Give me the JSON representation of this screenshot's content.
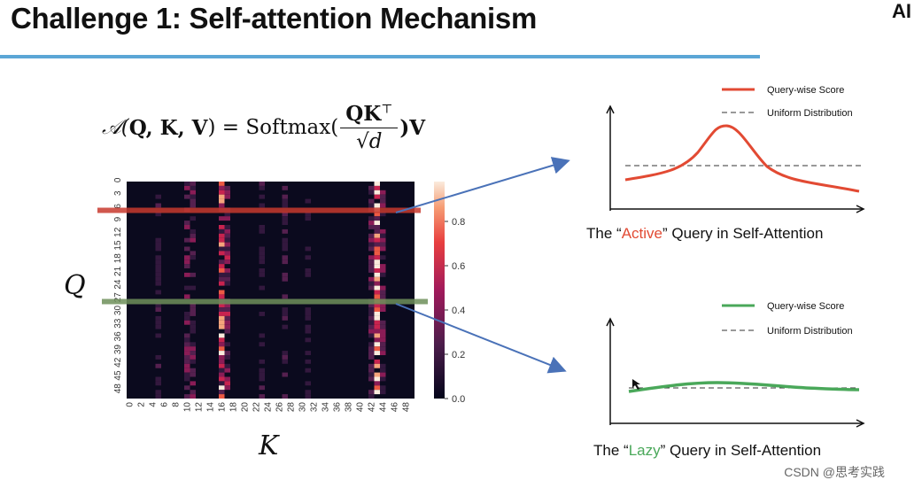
{
  "header": {
    "title": "Challenge 1: Self-attention Mechanism",
    "logo": "AI"
  },
  "formula": {
    "lhs": "𝒜(",
    "args": "Q, K, V",
    "eq": ") = Softmax(",
    "numerator": "QK",
    "numerator_sup": "⊤",
    "denominator": "√d",
    "tail": ")V"
  },
  "heatmap": {
    "q_label": "Q",
    "k_label": "K",
    "y_ticks": [
      "0",
      "3",
      "6",
      "9",
      "12",
      "15",
      "18",
      "21",
      "24",
      "27",
      "30",
      "33",
      "36",
      "39",
      "42",
      "45",
      "48"
    ],
    "x_ticks": [
      "0",
      "2",
      "4",
      "6",
      "8",
      "10",
      "12",
      "14",
      "16",
      "18",
      "20",
      "22",
      "24",
      "26",
      "28",
      "30",
      "32",
      "34",
      "36",
      "38",
      "40",
      "42",
      "44",
      "46",
      "48"
    ],
    "colorbar_ticks": [
      "0.8",
      "0.6",
      "0.4",
      "0.2",
      "0.0"
    ],
    "highlight_rows": [
      {
        "name": "active-query-row",
        "row": 7,
        "color": "#c83a2e"
      },
      {
        "name": "lazy-query-row",
        "row": 28,
        "color": "#6f8f5a"
      }
    ]
  },
  "active_panel": {
    "legend_series": "Query-wise Score",
    "legend_uniform": "Uniform Distribution",
    "caption_prefix": "The “",
    "caption_highlight": "Active",
    "caption_suffix": "” Query in Self-Attention",
    "color": "#e24a33"
  },
  "lazy_panel": {
    "legend_series": "Query-wise Score",
    "legend_uniform": "Uniform Distribution",
    "caption_prefix": "The “",
    "caption_highlight": "Lazy",
    "caption_suffix": "” Query in Self-Attention",
    "color": "#4aa85a"
  },
  "watermark": "CSDN @思考实践"
}
